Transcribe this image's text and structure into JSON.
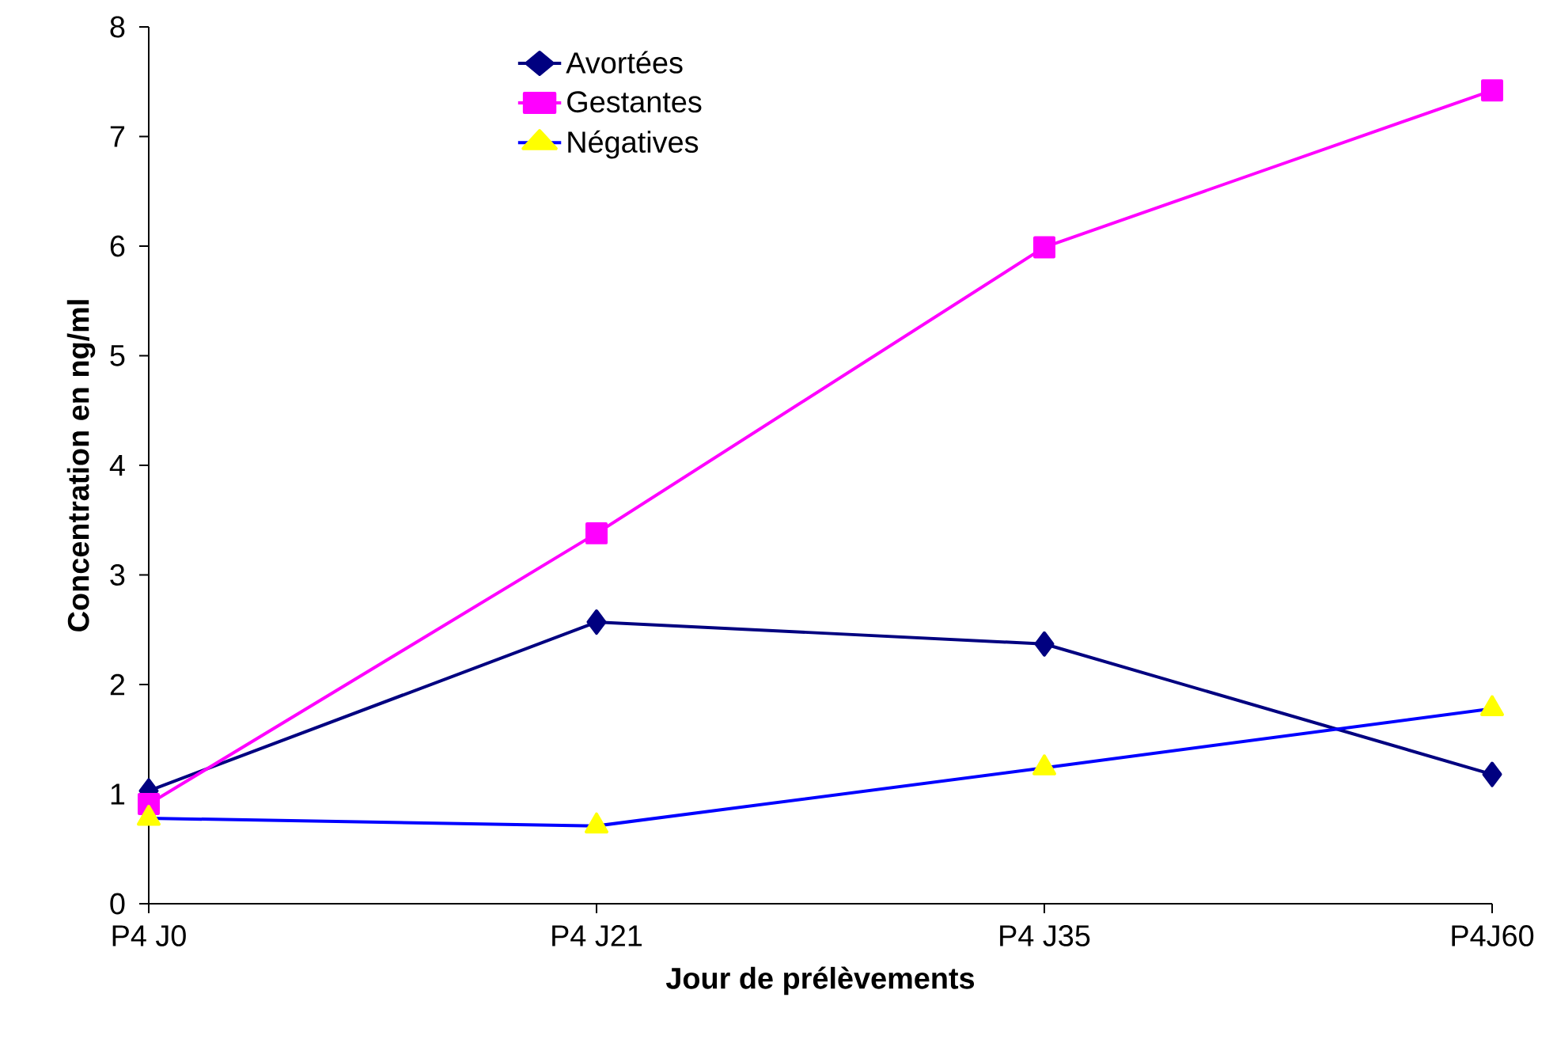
{
  "chart_data": {
    "type": "line",
    "xlabel": "Jour de prélèvements",
    "ylabel": "Concentration en ng/ml",
    "categories": [
      "P4 J0",
      "P4 J21",
      "P4 J35",
      "P4J60"
    ],
    "series": [
      {
        "name": "Avortées",
        "color": "#000080",
        "marker": "diamond",
        "values": [
          1.03,
          2.57,
          2.37,
          1.18
        ]
      },
      {
        "name": "Gestantes",
        "color": "#ff00ff",
        "marker": "square",
        "values": [
          0.91,
          3.38,
          5.99,
          7.42
        ]
      },
      {
        "name": "Négatives",
        "color": "#0000ff",
        "colors": [
          "#ffff00",
          "#ffff00",
          "#ffff00",
          "#ffff00"
        ],
        "marker": "triangle",
        "values": [
          0.78,
          0.71,
          1.24,
          1.78
        ]
      }
    ],
    "ylim": [
      0,
      8
    ],
    "yticks": [
      0,
      1,
      2,
      3,
      4,
      5,
      6,
      7,
      8
    ],
    "grid": false,
    "legend": "top",
    "line_style": "solid"
  }
}
